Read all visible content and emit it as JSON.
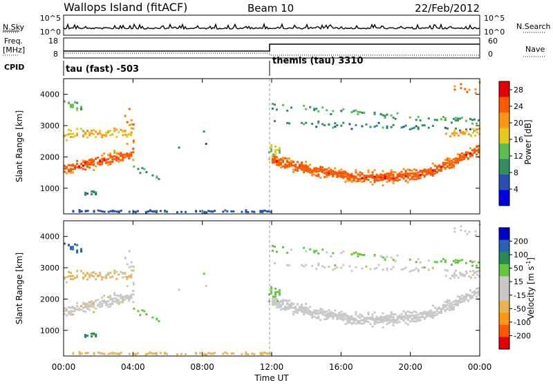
{
  "header": {
    "station": "Wallops Island (fitACF)",
    "beam": "Beam 10",
    "date": "22/Feb/2012"
  },
  "noise_panel": {
    "left_label": "N.Sky",
    "right_label": "N.Search",
    "left_ticks": [
      "10^5",
      "10^0"
    ],
    "right_ticks": [
      "10^5",
      "10^0"
    ]
  },
  "freq_panel": {
    "left_label_1": "Freq.",
    "left_label_2": "[MHz]",
    "right_label": "Nave",
    "left_ticks": [
      "18",
      "8"
    ],
    "right_ticks": [
      "60",
      "0"
    ]
  },
  "cpid": {
    "label": "CPID",
    "segments": [
      {
        "name": "tau (fast) -503",
        "start_hour": 0
      },
      {
        "name": "themis (tau) 3310",
        "start_hour": 12
      }
    ]
  },
  "colors": {
    "power_scale": [
      "#0000e6",
      "#2850b4",
      "#328c64",
      "#5abe50",
      "#e6c81e",
      "#ff9614",
      "#ff5a00",
      "#e60000"
    ],
    "velocity_scale": [
      "#e60000",
      "#ff5a00",
      "#ff9614",
      "#e6b450",
      "#c8c8c8",
      "#c8c8c8",
      "#64c83c",
      "#288c50",
      "#2864b4",
      "#0000c8"
    ]
  },
  "chart_data": [
    {
      "type": "heatmap",
      "title": "Power",
      "ylabel": "Slant Range [km]",
      "xlabel": "Time UT",
      "x_ticks": [
        "00:00",
        "04:00",
        "08:00",
        "12:00",
        "16:00",
        "20:00",
        "00:00"
      ],
      "y_ticks": [
        "1000",
        "2000",
        "3000",
        "4000"
      ],
      "xlim": [
        0,
        24
      ],
      "ylim": [
        180,
        4500
      ],
      "colorbar_label": "Power [dB]",
      "colorbar_ticks": [
        "4",
        "8",
        "12",
        "16",
        "20",
        "24",
        "28"
      ],
      "colorbar_range": [
        0,
        30
      ]
    },
    {
      "type": "heatmap",
      "title": "Velocity",
      "ylabel": "Slant Range [km]",
      "xlabel": "Time UT",
      "x_ticks": [
        "00:00",
        "04:00",
        "08:00",
        "12:00",
        "16:00",
        "20:00",
        "00:00"
      ],
      "y_ticks": [
        "1000",
        "2000",
        "3000",
        "4000"
      ],
      "xlim": [
        0,
        24
      ],
      "ylim": [
        180,
        4500
      ],
      "colorbar_label": "Velocity [m s",
      "colorbar_label_sup": "-1",
      "colorbar_label_end": "]",
      "colorbar_ticks": [
        "200",
        "100",
        "50",
        "15",
        "-15",
        "-50",
        "-100",
        "-200"
      ],
      "colorbar_range": [
        -250,
        250
      ]
    }
  ]
}
